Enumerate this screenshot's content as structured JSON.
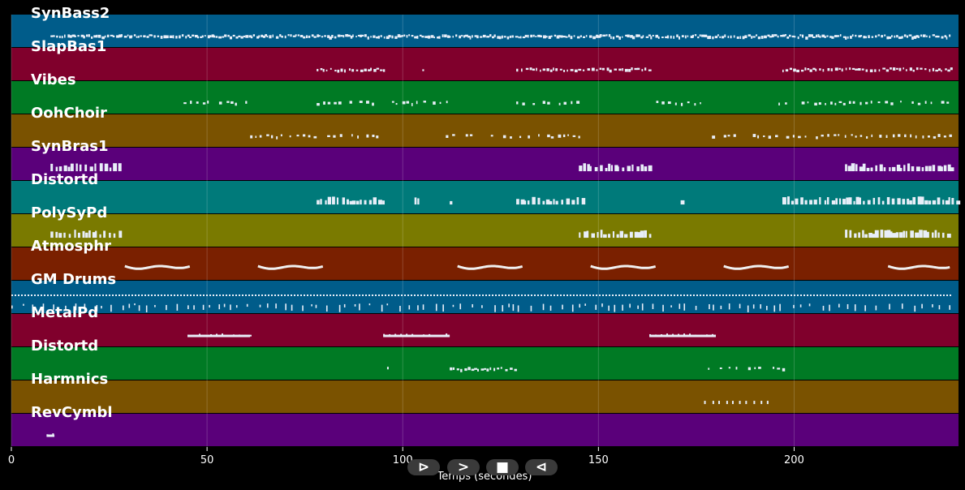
{
  "tracks": [
    {
      "label": "SynBass2",
      "color": "#005c8a",
      "segments": [
        [
          10,
          240,
          "dense"
        ]
      ]
    },
    {
      "label": "SlapBas1",
      "color": "#80002c",
      "segments": [
        [
          78,
          95,
          "medium"
        ],
        [
          105,
          106,
          "medium"
        ],
        [
          129,
          163,
          "medium"
        ],
        [
          197,
          240,
          "medium"
        ]
      ]
    },
    {
      "label": "Vibes",
      "color": "#007a24",
      "segments": [
        [
          44,
          54,
          "sparse"
        ],
        [
          55,
          61,
          "sparse"
        ],
        [
          78,
          112,
          "sparse"
        ],
        [
          129,
          145,
          "sparse"
        ],
        [
          163,
          176,
          "sparse"
        ],
        [
          196,
          240,
          "sparse"
        ]
      ]
    },
    {
      "label": "OohChoir",
      "color": "#7a5200",
      "segments": [
        [
          61,
          94,
          "sparse"
        ],
        [
          111,
          145,
          "sparse"
        ],
        [
          179,
          240,
          "sparse"
        ]
      ]
    },
    {
      "label": "SynBras1",
      "color": "#5a007a",
      "segments": [
        [
          10,
          28,
          "chords"
        ],
        [
          145,
          163,
          "chords"
        ],
        [
          213,
          240,
          "chords"
        ]
      ]
    },
    {
      "label": "Distortd",
      "color": "#007a7a",
      "segments": [
        [
          78,
          95,
          "chords"
        ],
        [
          103,
          104,
          "chords"
        ],
        [
          112,
          113,
          "chords"
        ],
        [
          129,
          146,
          "chords"
        ],
        [
          171,
          172,
          "chords"
        ],
        [
          197,
          242,
          "chords"
        ]
      ]
    },
    {
      "label": "PolySyPd",
      "color": "#7a7a00",
      "segments": [
        [
          10,
          28,
          "chords"
        ],
        [
          145,
          163,
          "chords"
        ],
        [
          213,
          240,
          "chords"
        ]
      ]
    },
    {
      "label": "Atmosphr",
      "color": "#7a2000",
      "segments": [
        [
          29,
          46,
          "wave"
        ],
        [
          63,
          80,
          "wave"
        ],
        [
          114,
          131,
          "wave"
        ],
        [
          148,
          165,
          "wave"
        ],
        [
          182,
          199,
          "wave"
        ],
        [
          224,
          240,
          "wave"
        ]
      ]
    },
    {
      "label": "GM Drums",
      "color": "#005c8a",
      "segments": [
        [
          0,
          240,
          "drums"
        ]
      ]
    },
    {
      "label": "MetalPd",
      "color": "#80002c",
      "segments": [
        [
          45,
          61,
          "line"
        ],
        [
          95,
          112,
          "line"
        ],
        [
          163,
          180,
          "line"
        ]
      ]
    },
    {
      "label": "Distortd",
      "color": "#007a24",
      "segments": [
        [
          96,
          97,
          "medium"
        ],
        [
          112,
          129,
          "medium"
        ],
        [
          178,
          180,
          "sparse"
        ],
        [
          181,
          197,
          "sparse"
        ]
      ]
    },
    {
      "label": "Harmnics",
      "color": "#7a5200",
      "segments": [
        [
          177,
          194,
          "dots"
        ]
      ]
    },
    {
      "label": "RevCymbl",
      "color": "#5a007a",
      "segments": [
        [
          9,
          11,
          "line"
        ]
      ]
    }
  ],
  "axis": {
    "ticks": [
      0,
      50,
      100,
      150,
      200
    ],
    "tick_labels": [
      "0",
      "50",
      "100",
      "150",
      "200"
    ],
    "max_seconds": 242,
    "title": "Temps (secondes)"
  },
  "controls": [
    {
      "name": "play",
      "glyph": "⊳"
    },
    {
      "name": "forward",
      "glyph": ">"
    },
    {
      "name": "stop",
      "glyph": "■"
    },
    {
      "name": "back",
      "glyph": "⊲"
    }
  ]
}
